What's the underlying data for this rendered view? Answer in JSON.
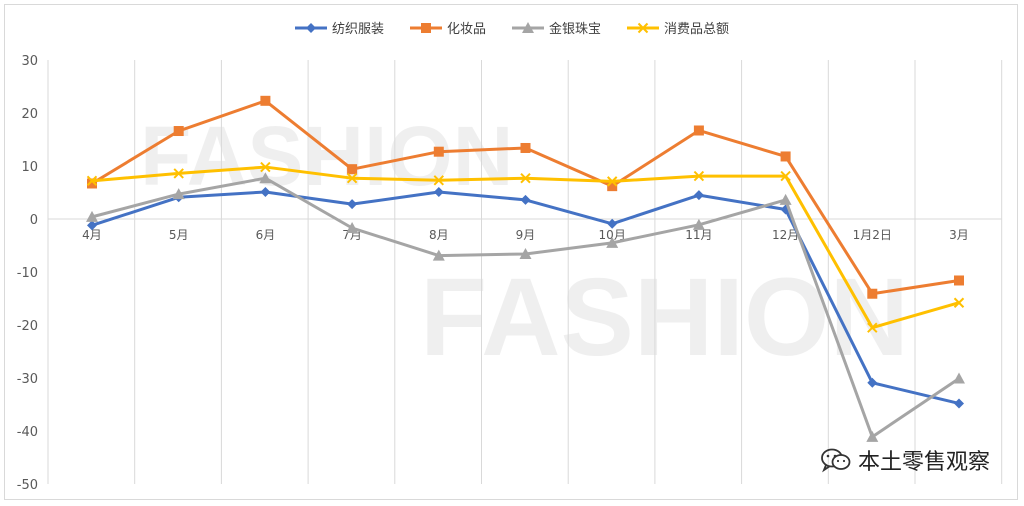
{
  "watermark": {
    "text": "FASHION",
    "brand": "本土零售观察",
    "brand_icon": "wechat-icon"
  },
  "chart_data": {
    "type": "line",
    "categories": [
      "4月",
      "5月",
      "6月",
      "7月",
      "8月",
      "9月",
      "10月",
      "11月",
      "12月",
      "1月2日",
      "3月"
    ],
    "ylim": [
      -50,
      30
    ],
    "yticks": [
      30,
      20,
      10,
      0,
      -10,
      -20,
      -30,
      -40,
      -50
    ],
    "grid": "vertical",
    "legend": "top",
    "series": [
      {
        "name": "纺织服装",
        "color": "#4472c4",
        "marker": "diamond",
        "values": [
          -1.2,
          4.1,
          5.1,
          2.8,
          5.1,
          3.6,
          -0.9,
          4.5,
          1.8,
          -30.9,
          -34.8
        ]
      },
      {
        "name": "化妆品",
        "color": "#ed7d31",
        "marker": "square",
        "values": [
          6.7,
          16.6,
          22.3,
          9.4,
          12.7,
          13.4,
          6.2,
          16.7,
          11.8,
          -14.1,
          -11.6
        ]
      },
      {
        "name": "金银珠宝",
        "color": "#a5a5a5",
        "marker": "triangle",
        "values": [
          0.4,
          4.7,
          7.7,
          -1.7,
          -6.9,
          -6.6,
          -4.5,
          -1.1,
          3.6,
          -41.1,
          -30.1
        ]
      },
      {
        "name": "消费品总额",
        "color": "#ffc000",
        "marker": "x",
        "values": [
          7.2,
          8.6,
          9.8,
          7.7,
          7.3,
          7.7,
          7.1,
          8.1,
          8.1,
          -20.5,
          -15.8
        ]
      }
    ]
  }
}
